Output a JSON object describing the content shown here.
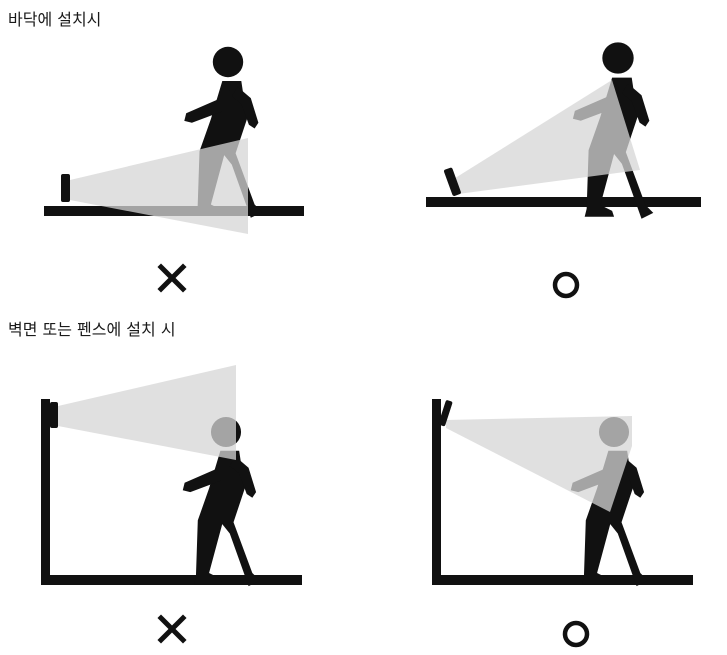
{
  "sections": [
    {
      "heading": "바닥에 설치시",
      "panels": [
        {
          "name": "floor-wrong",
          "verdict": "✕"
        },
        {
          "name": "floor-correct",
          "verdict": "○"
        }
      ]
    },
    {
      "heading": "벽면 또는 펜스에 설치 시",
      "panels": [
        {
          "name": "wall-wrong",
          "verdict": "✕"
        },
        {
          "name": "wall-correct",
          "verdict": "○"
        }
      ]
    }
  ],
  "colors": {
    "ink": "#111111",
    "beam": "#d0d0d0",
    "figure": "#111111",
    "background": "#ffffff"
  },
  "icons": {
    "sensor": "sensor-icon",
    "walker": "walking-person-icon",
    "wrong": "x-mark-icon",
    "correct": "circle-mark-icon"
  }
}
